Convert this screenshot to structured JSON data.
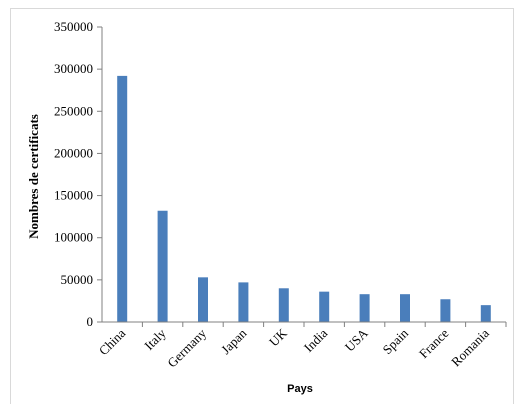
{
  "chart_data": {
    "type": "bar",
    "categories": [
      "China",
      "Italy",
      "Germany",
      "Japan",
      "UK",
      "India",
      "USA",
      "Spain",
      "France",
      "Romania"
    ],
    "values": [
      292000,
      132000,
      53000,
      47000,
      40000,
      36000,
      33000,
      33000,
      27000,
      20000
    ],
    "xlabel": "Pays",
    "ylabel": "Nombres de certificats",
    "ylim": [
      0,
      350000
    ],
    "yticks": [
      "0",
      "50000",
      "100000",
      "150000",
      "200000",
      "250000",
      "300000",
      "350000"
    ],
    "grid": false,
    "legend": "none",
    "bar_color": "#4a7ebb"
  }
}
